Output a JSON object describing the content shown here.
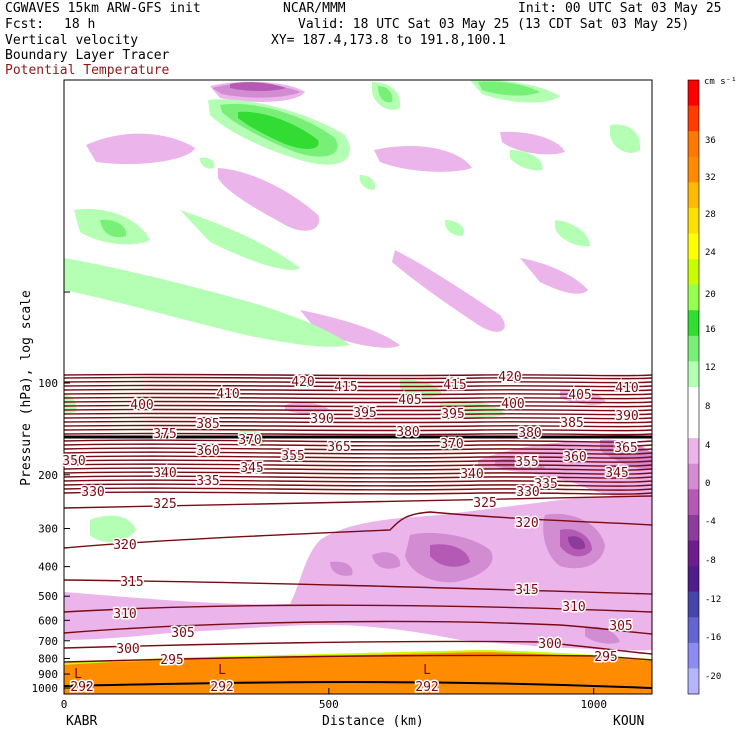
{
  "header": {
    "model": "CGWAVES 15km ARW-GFS init",
    "org": "NCAR/MMM",
    "init": "Init: 00 UTC Sat 03 May 25",
    "fcst_label": "Fcst:",
    "fcst_value": "18 h",
    "valid": "Valid: 18 UTC Sat 03 May 25 (13 CDT Sat 03 May 25)",
    "xy": "XY= 187.4,173.8 to 191.8,100.1",
    "field1": "Vertical velocity",
    "field2": "Boundary Layer Tracer",
    "field3": "Potential Temperature"
  },
  "colors": {
    "theta_contour": "#7a0a14",
    "theta_label": "#7a0a14",
    "pbl_fill": "#ff8c00",
    "field3_text": "#8b1a1a"
  },
  "chart_data": {
    "type": "cross-section",
    "xlabel": "Distance (km)",
    "ylabel": "Pressure (hPa), log scale",
    "xlim": [
      0,
      1110
    ],
    "x_ticks": [
      0,
      500,
      1000
    ],
    "y_ticks": [
      100,
      200,
      300,
      400,
      500,
      600,
      700,
      800,
      900,
      1000
    ],
    "left_station": "KABR",
    "right_station": "KOUN",
    "colorbar": {
      "unit": "cm s⁻¹",
      "labels": [
        "36",
        "32",
        "28",
        "24",
        "20",
        "16",
        "12",
        "8",
        "4",
        "0",
        "-4",
        "-8",
        "-12",
        "-16",
        "-20"
      ],
      "colors": [
        "#ff0000",
        "#ff3c00",
        "#ff7800",
        "#ff8c00",
        "#ffbb00",
        "#ffe000",
        "#ffff00",
        "#c8ff00",
        "#96ff50",
        "#32dc32",
        "#78f078",
        "#b4ffb4",
        "#ffffff",
        "#ffffff",
        "#ebb4eb",
        "#d28cd2",
        "#b45ab4",
        "#8c3c9c",
        "#6e1e8c",
        "#501e8c",
        "#4646aa",
        "#6464d2",
        "#8c8cf0",
        "#b4b4ff"
      ]
    },
    "theta_labels": [
      {
        "v": "420",
        "x": 303,
        "y": 381
      },
      {
        "v": "415",
        "x": 346,
        "y": 386
      },
      {
        "v": "415",
        "x": 455,
        "y": 384
      },
      {
        "v": "420",
        "x": 510,
        "y": 376
      },
      {
        "v": "410",
        "x": 228,
        "y": 393
      },
      {
        "v": "405",
        "x": 410,
        "y": 399
      },
      {
        "v": "405",
        "x": 580,
        "y": 394
      },
      {
        "v": "410",
        "x": 627,
        "y": 387
      },
      {
        "v": "400",
        "x": 142,
        "y": 404
      },
      {
        "v": "400",
        "x": 513,
        "y": 403
      },
      {
        "v": "390",
        "x": 322,
        "y": 418
      },
      {
        "v": "395",
        "x": 365,
        "y": 412
      },
      {
        "v": "395",
        "x": 453,
        "y": 413
      },
      {
        "v": "390",
        "x": 627,
        "y": 415
      },
      {
        "v": "385",
        "x": 208,
        "y": 423
      },
      {
        "v": "385",
        "x": 572,
        "y": 422
      },
      {
        "v": "375",
        "x": 165,
        "y": 433
      },
      {
        "v": "380",
        "x": 408,
        "y": 431
      },
      {
        "v": "380",
        "x": 530,
        "y": 432
      },
      {
        "v": "365",
        "x": 626,
        "y": 447
      },
      {
        "v": "370",
        "x": 250,
        "y": 439
      },
      {
        "v": "370",
        "x": 452,
        "y": 443
      },
      {
        "v": "360",
        "x": 208,
        "y": 450
      },
      {
        "v": "365",
        "x": 339,
        "y": 446
      },
      {
        "v": "360",
        "x": 575,
        "y": 456
      },
      {
        "v": "355",
        "x": 293,
        "y": 455
      },
      {
        "v": "355",
        "x": 527,
        "y": 461
      },
      {
        "v": "350",
        "x": 74,
        "y": 460
      },
      {
        "v": "345",
        "x": 252,
        "y": 467
      },
      {
        "v": "345",
        "x": 617,
        "y": 472
      },
      {
        "v": "340",
        "x": 165,
        "y": 472
      },
      {
        "v": "340",
        "x": 472,
        "y": 473
      },
      {
        "v": "335",
        "x": 208,
        "y": 480
      },
      {
        "v": "335",
        "x": 546,
        "y": 483
      },
      {
        "v": "330",
        "x": 93,
        "y": 491
      },
      {
        "v": "330",
        "x": 528,
        "y": 491
      },
      {
        "v": "325",
        "x": 165,
        "y": 503
      },
      {
        "v": "325",
        "x": 485,
        "y": 502
      },
      {
        "v": "320",
        "x": 527,
        "y": 522
      },
      {
        "v": "320",
        "x": 125,
        "y": 544
      },
      {
        "v": "315",
        "x": 132,
        "y": 581
      },
      {
        "v": "315",
        "x": 527,
        "y": 589
      },
      {
        "v": "310",
        "x": 125,
        "y": 613
      },
      {
        "v": "310",
        "x": 574,
        "y": 606
      },
      {
        "v": "305",
        "x": 183,
        "y": 632
      },
      {
        "v": "305",
        "x": 621,
        "y": 625
      },
      {
        "v": "300",
        "x": 128,
        "y": 648
      },
      {
        "v": "300",
        "x": 550,
        "y": 643
      },
      {
        "v": "295",
        "x": 172,
        "y": 659
      },
      {
        "v": "295",
        "x": 606,
        "y": 656
      },
      {
        "v": "292",
        "x": 82,
        "y": 686
      },
      {
        "v": "292",
        "x": 222,
        "y": 686
      },
      {
        "v": "292",
        "x": 427,
        "y": 686
      }
    ],
    "low_labels": [
      {
        "v": "L",
        "x": 78,
        "y": 673
      },
      {
        "v": "L",
        "x": 222,
        "y": 669
      },
      {
        "v": "L",
        "x": 427,
        "y": 669
      }
    ]
  }
}
